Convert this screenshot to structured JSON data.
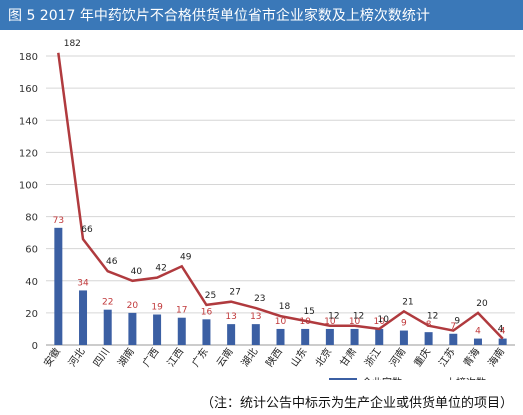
{
  "title": "图 5  2017 年中药饮片不合格供货单位省市企业家数及上榜次数统计",
  "note": "（注：统计公告中标示为生产企业或供货单位的项目）",
  "colors": {
    "title_bg": "#3a78b8",
    "bar": "#3b5fa3",
    "line": "#b03a3e",
    "bar_label": "#c0393b",
    "line_label": "#222222"
  },
  "chart_data": {
    "type": "bar",
    "categories": [
      "安徽",
      "河北",
      "四川",
      "湖南",
      "广西",
      "江西",
      "广东",
      "云南",
      "湖北",
      "陕西",
      "山东",
      "北京",
      "甘肃",
      "浙江",
      "河南",
      "重庆",
      "江苏",
      "青海",
      "海南"
    ],
    "series": [
      {
        "name": "企业家数",
        "type": "bar",
        "values": [
          73,
          34,
          22,
          20,
          19,
          17,
          16,
          13,
          13,
          10,
          10,
          10,
          10,
          10,
          9,
          8,
          7,
          4,
          4
        ]
      },
      {
        "name": "上榜次数",
        "type": "line",
        "values": [
          182,
          66,
          46,
          40,
          42,
          49,
          25,
          27,
          23,
          18,
          15,
          12,
          12,
          10,
          21,
          12,
          9,
          20,
          4
        ]
      }
    ],
    "ylim": [
      0,
      190
    ],
    "yticks": [
      0,
      20,
      40,
      60,
      80,
      100,
      120,
      140,
      160,
      180
    ],
    "grid": true,
    "legend": "bottom-right"
  }
}
